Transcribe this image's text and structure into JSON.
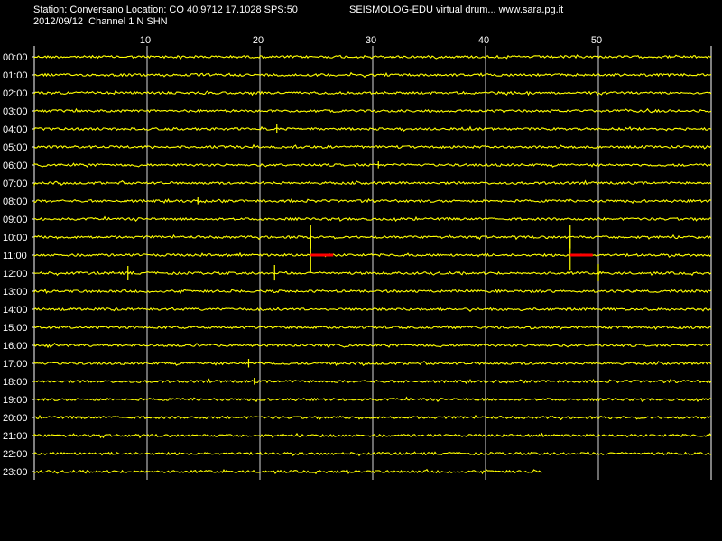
{
  "header": {
    "station_line": "Station: Conversano Location: CO 40.9712 17.1028 SPS:50",
    "date_line": "2012/09/12  Channel 1 N SHN",
    "app_line": "SEISMOLOG-EDU virtual drum... www.sara.pg.it"
  },
  "colors": {
    "background": "#000000",
    "trace": "#ffff00",
    "event": "#ff0000",
    "grid": "#ffffff",
    "text": "#ffffff"
  },
  "chart_data": {
    "type": "line",
    "title": "",
    "xlabel": "",
    "ylabel": "",
    "xlim": [
      0,
      60
    ],
    "x_ticks": [
      10,
      20,
      30,
      40,
      50
    ],
    "hours": [
      "00:00",
      "01:00",
      "02:00",
      "03:00",
      "04:00",
      "05:00",
      "06:00",
      "07:00",
      "08:00",
      "09:00",
      "10:00",
      "11:00",
      "12:00",
      "13:00",
      "14:00",
      "15:00",
      "16:00",
      "17:00",
      "18:00",
      "19:00",
      "20:00",
      "21:00",
      "22:00",
      "23:00"
    ],
    "last_row_end_minute": 45,
    "grid": true,
    "spikes": [
      {
        "hour": 4,
        "minute": 21.5,
        "amplitude": 5
      },
      {
        "hour": 6,
        "minute": 30.5,
        "amplitude": 4
      },
      {
        "hour": 8,
        "minute": 14.5,
        "amplitude": 4
      },
      {
        "hour": 10,
        "minute": 24.5,
        "amplitude": 14
      },
      {
        "hour": 10,
        "minute": 47.5,
        "amplitude": 14
      },
      {
        "hour": 11,
        "minute": 24.5,
        "amplitude": 22
      },
      {
        "hour": 11,
        "minute": 47.5,
        "amplitude": 18
      },
      {
        "hour": 12,
        "minute": 8.3,
        "amplitude": 8
      },
      {
        "hour": 12,
        "minute": 21.3,
        "amplitude": 9
      },
      {
        "hour": 12,
        "minute": 50,
        "amplitude": 10
      },
      {
        "hour": 17,
        "minute": 19,
        "amplitude": 5
      },
      {
        "hour": 18,
        "minute": 19.5,
        "amplitude": 4
      }
    ],
    "events": [
      {
        "hour": 11,
        "start_minute": 24.5,
        "end_minute": 26.5
      },
      {
        "hour": 11,
        "start_minute": 47.5,
        "end_minute": 49.5
      }
    ]
  }
}
